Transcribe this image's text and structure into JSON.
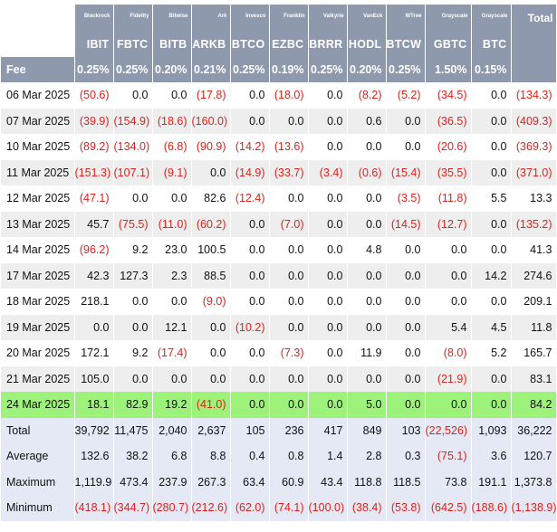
{
  "issuers": [
    "Blackrock",
    "Fidelity",
    "Bitwise",
    "Ark",
    "Invesco",
    "Franklin",
    "Valkyrie",
    "VanEck",
    "WTree",
    "Grayscale",
    "Grayscale"
  ],
  "total_label": "Total",
  "tickers": [
    "IBIT",
    "FBTC",
    "BITB",
    "ARKB",
    "BTCO",
    "EZBC",
    "BRRR",
    "HODL",
    "BTCW",
    "GBTC",
    "BTC"
  ],
  "fee_label": "Fee",
  "fees": [
    "0.25%",
    "0.25%",
    "0.20%",
    "0.21%",
    "0.25%",
    "0.19%",
    "0.25%",
    "0.20%",
    "0.25%",
    "1.50%",
    "0.15%",
    ""
  ],
  "rows": [
    {
      "date": "06 Mar 2025",
      "values": [
        "(50.6)",
        "0.0",
        "0.0",
        "(17.8)",
        "0.0",
        "(18.0)",
        "0.0",
        "(8.2)",
        "(5.2)",
        "(34.5)",
        "0.0",
        "(134.3)"
      ]
    },
    {
      "date": "07 Mar 2025",
      "values": [
        "(39.9)",
        "(154.9)",
        "(18.6)",
        "(160.0)",
        "0.0",
        "0.0",
        "0.0",
        "0.6",
        "0.0",
        "(36.5)",
        "0.0",
        "(409.3)"
      ]
    },
    {
      "date": "10 Mar 2025",
      "values": [
        "(89.2)",
        "(134.0)",
        "(6.8)",
        "(90.9)",
        "(14.2)",
        "(13.6)",
        "0.0",
        "0.0",
        "0.0",
        "(20.6)",
        "0.0",
        "(369.3)"
      ]
    },
    {
      "date": "11 Mar 2025",
      "values": [
        "(151.3)",
        "(107.1)",
        "(9.1)",
        "0.0",
        "(14.9)",
        "(33.7)",
        "(3.4)",
        "(0.6)",
        "(15.4)",
        "(35.5)",
        "0.0",
        "(371.0)"
      ]
    },
    {
      "date": "12 Mar 2025",
      "values": [
        "(47.1)",
        "0.0",
        "0.0",
        "82.6",
        "(12.4)",
        "0.0",
        "0.0",
        "0.0",
        "(3.5)",
        "(11.8)",
        "5.5",
        "13.3"
      ]
    },
    {
      "date": "13 Mar 2025",
      "values": [
        "45.7",
        "(75.5)",
        "(11.0)",
        "(60.2)",
        "0.0",
        "(7.0)",
        "0.0",
        "0.0",
        "(14.5)",
        "(12.7)",
        "0.0",
        "(135.2)"
      ]
    },
    {
      "date": "14 Mar 2025",
      "values": [
        "(96.2)",
        "9.2",
        "23.0",
        "100.5",
        "0.0",
        "0.0",
        "0.0",
        "4.8",
        "0.0",
        "0.0",
        "0.0",
        "41.3"
      ]
    },
    {
      "date": "17 Mar 2025",
      "values": [
        "42.3",
        "127.3",
        "2.3",
        "88.5",
        "0.0",
        "0.0",
        "0.0",
        "0.0",
        "0.0",
        "0.0",
        "14.2",
        "274.6"
      ]
    },
    {
      "date": "18 Mar 2025",
      "values": [
        "218.1",
        "0.0",
        "0.0",
        "(9.0)",
        "0.0",
        "0.0",
        "0.0",
        "0.0",
        "0.0",
        "0.0",
        "0.0",
        "209.1"
      ]
    },
    {
      "date": "19 Mar 2025",
      "values": [
        "0.0",
        "0.0",
        "12.1",
        "0.0",
        "(10.2)",
        "0.0",
        "0.0",
        "0.0",
        "0.0",
        "5.4",
        "4.5",
        "11.8"
      ]
    },
    {
      "date": "20 Mar 2025",
      "values": [
        "172.1",
        "9.2",
        "(17.4)",
        "0.0",
        "0.0",
        "(7.3)",
        "0.0",
        "11.9",
        "0.0",
        "(8.0)",
        "5.2",
        "165.7"
      ]
    },
    {
      "date": "21 Mar 2025",
      "values": [
        "105.0",
        "0.0",
        "0.0",
        "0.0",
        "0.0",
        "0.0",
        "0.0",
        "0.0",
        "0.0",
        "(21.9)",
        "0.0",
        "83.1"
      ]
    },
    {
      "date": "24 Mar 2025",
      "values": [
        "18.1",
        "82.9",
        "19.2",
        "(41.0)",
        "0.0",
        "0.0",
        "0.0",
        "5.0",
        "0.0",
        "0.0",
        "0.0",
        "84.2"
      ],
      "highlight": true
    }
  ],
  "summary": [
    {
      "label": "Total",
      "values": [
        "39,792",
        "11,475",
        "2,040",
        "2,637",
        "105",
        "236",
        "417",
        "849",
        "103",
        "(22,526)",
        "1,093",
        "36,222"
      ]
    },
    {
      "label": "Average",
      "values": [
        "132.6",
        "38.2",
        "6.8",
        "8.8",
        "0.4",
        "0.8",
        "1.4",
        "2.8",
        "0.3",
        "(75.1)",
        "3.6",
        "120.7"
      ]
    },
    {
      "label": "Maximum",
      "values": [
        "1,119.9",
        "473.4",
        "237.9",
        "267.3",
        "63.4",
        "60.9",
        "43.4",
        "118.8",
        "118.5",
        "73.8",
        "191.1",
        "1,373.8"
      ]
    },
    {
      "label": "Minimum",
      "values": [
        "(418.1)",
        "(344.7)",
        "(280.7)",
        "(212.6)",
        "(62.0)",
        "(74.1)",
        "(100.0)",
        "(38.4)",
        "(53.8)",
        "(642.5)",
        "(188.6)",
        "(1,138.9)"
      ]
    }
  ],
  "colors": {
    "header": "#8f99ad",
    "negative": "#e0211b",
    "highlight": "#9df27a",
    "alt_row": "#eeeeee",
    "summary": "#e4e9f5"
  }
}
